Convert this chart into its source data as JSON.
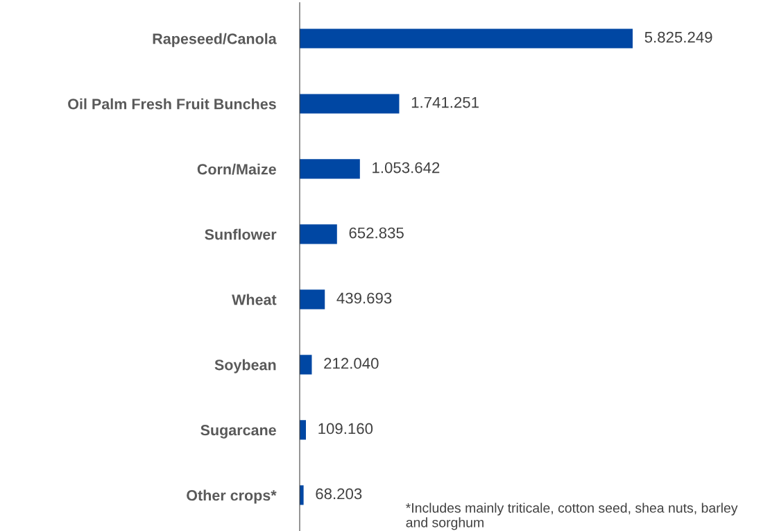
{
  "chart_data": {
    "type": "bar",
    "orientation": "horizontal",
    "categories": [
      "Rapeseed/Canola",
      "Oil Palm Fresh Fruit Bunches",
      "Corn/Maize",
      "Sunflower",
      "Wheat",
      "Soybean",
      "Sugarcane",
      "Other crops*"
    ],
    "values": [
      5825249,
      1741251,
      1053642,
      652835,
      439693,
      212040,
      109160,
      68203
    ],
    "value_labels": [
      "5.825.249",
      "1.741.251",
      "1.053.642",
      "652.835",
      "439.693",
      "212.040",
      "109.160",
      "68.203"
    ],
    "color": "#0047a3",
    "annotations": [
      "*Includes mainly triticale, cotton seed, shea nuts, barley and sorghum"
    ],
    "grid": false,
    "legend": false
  }
}
